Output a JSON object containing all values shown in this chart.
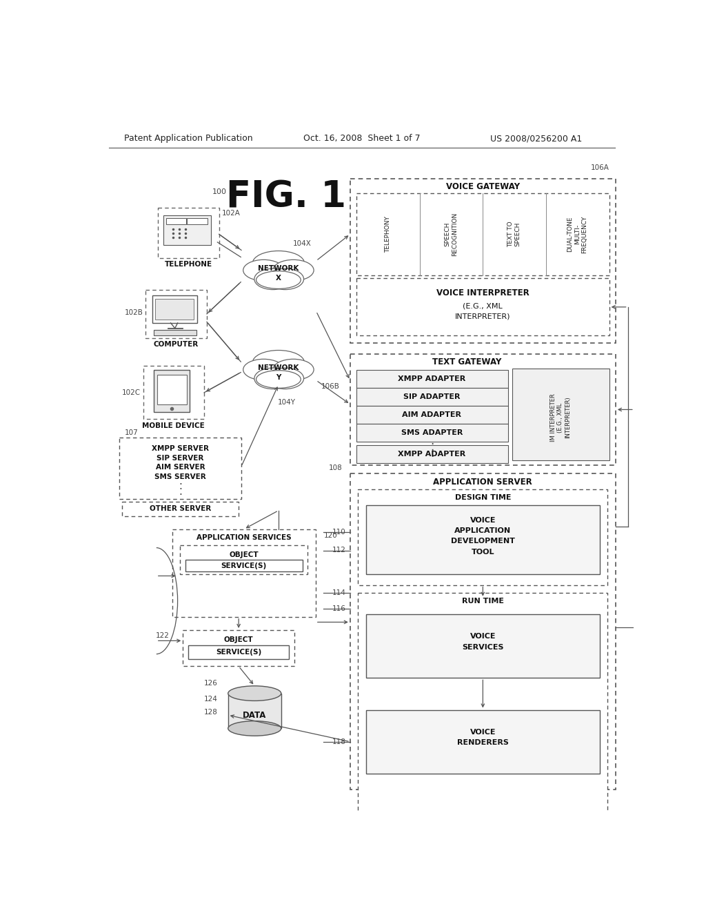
{
  "header_left": "Patent Application Publication",
  "header_center": "Oct. 16, 2008  Sheet 1 of 7",
  "header_right": "US 2008/0256200 A1",
  "bg_color": "#ffffff",
  "fig_title": "FIG. 1"
}
